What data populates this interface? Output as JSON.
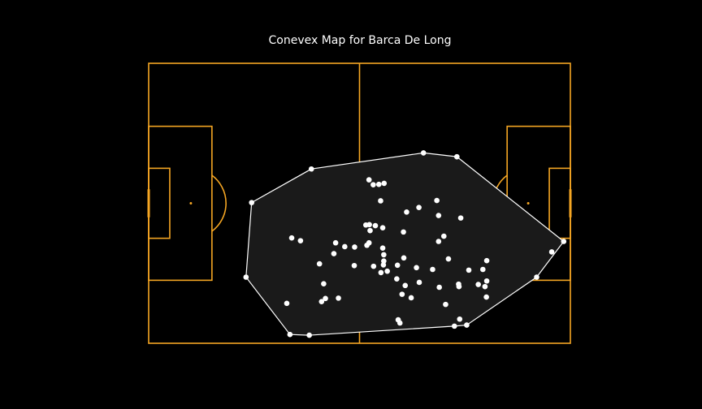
{
  "chart_data": {
    "type": "scatter",
    "title": "Conevex Map for Barca De Long",
    "xlabel": "",
    "ylabel": "",
    "xlim": [
      0,
      120
    ],
    "ylim": [
      0,
      80
    ],
    "grid": false,
    "pitch": {
      "length": 120,
      "width": 80,
      "line_color": "#f5a623",
      "background": "#000000"
    },
    "hull_style": {
      "fill": "#1a1a1a",
      "stroke": "#ffffff"
    },
    "point_color": "#ffffff",
    "hull": [
      [
        78.2,
        54.4
      ],
      [
        87.7,
        53.3
      ],
      [
        118.1,
        29.1
      ],
      [
        110.4,
        18.9
      ],
      [
        90.5,
        5.2
      ],
      [
        87.0,
        4.9
      ],
      [
        45.7,
        2.3
      ],
      [
        40.2,
        2.5
      ],
      [
        27.7,
        18.9
      ],
      [
        29.3,
        40.2
      ],
      [
        46.3,
        49.8
      ]
    ],
    "points": [
      [
        78.2,
        54.4
      ],
      [
        87.7,
        53.3
      ],
      [
        46.3,
        49.8
      ],
      [
        29.3,
        40.2
      ],
      [
        118.1,
        29.1
      ],
      [
        110.4,
        18.9
      ],
      [
        90.5,
        5.2
      ],
      [
        87.0,
        4.9
      ],
      [
        45.7,
        2.3
      ],
      [
        40.2,
        2.5
      ],
      [
        27.7,
        18.9
      ],
      [
        114.7,
        26.1
      ],
      [
        62.7,
        46.7
      ],
      [
        63.9,
        45.3
      ],
      [
        65.5,
        45.4
      ],
      [
        67.0,
        45.7
      ],
      [
        66.0,
        40.7
      ],
      [
        82.0,
        40.8
      ],
      [
        76.9,
        38.8
      ],
      [
        73.4,
        37.5
      ],
      [
        82.5,
        36.5
      ],
      [
        88.8,
        35.8
      ],
      [
        64.5,
        33.6
      ],
      [
        62.8,
        33.9
      ],
      [
        61.8,
        33.8
      ],
      [
        63.0,
        32.2
      ],
      [
        66.6,
        33.0
      ],
      [
        72.5,
        31.8
      ],
      [
        84.0,
        30.6
      ],
      [
        82.5,
        29.1
      ],
      [
        40.7,
        30.1
      ],
      [
        43.2,
        29.3
      ],
      [
        53.2,
        28.7
      ],
      [
        55.8,
        27.6
      ],
      [
        58.6,
        27.5
      ],
      [
        62.1,
        28.0
      ],
      [
        62.7,
        28.7
      ],
      [
        66.6,
        27.2
      ],
      [
        52.7,
        25.6
      ],
      [
        66.9,
        25.3
      ],
      [
        72.6,
        24.4
      ],
      [
        85.3,
        24.1
      ],
      [
        96.2,
        23.6
      ],
      [
        48.6,
        22.7
      ],
      [
        58.5,
        22.2
      ],
      [
        66.9,
        23.5
      ],
      [
        66.8,
        22.4
      ],
      [
        70.8,
        22.3
      ],
      [
        76.2,
        21.6
      ],
      [
        80.8,
        21.1
      ],
      [
        91.1,
        20.9
      ],
      [
        95.1,
        21.1
      ],
      [
        64.0,
        22.0
      ],
      [
        66.1,
        20.2
      ],
      [
        67.9,
        20.6
      ],
      [
        70.6,
        18.4
      ],
      [
        49.8,
        17.0
      ],
      [
        73.0,
        16.5
      ],
      [
        77.0,
        17.4
      ],
      [
        82.7,
        16.0
      ],
      [
        88.2,
        16.9
      ],
      [
        88.3,
        16.2
      ],
      [
        93.8,
        16.8
      ],
      [
        95.7,
        16.2
      ],
      [
        96.2,
        17.8
      ],
      [
        72.1,
        14.0
      ],
      [
        74.7,
        13.0
      ],
      [
        96.1,
        13.2
      ],
      [
        50.3,
        12.8
      ],
      [
        54.0,
        12.9
      ],
      [
        49.2,
        11.9
      ],
      [
        39.3,
        11.4
      ],
      [
        84.5,
        11.1
      ],
      [
        71.0,
        6.7
      ],
      [
        71.5,
        5.8
      ],
      [
        88.5,
        6.9
      ]
    ]
  }
}
